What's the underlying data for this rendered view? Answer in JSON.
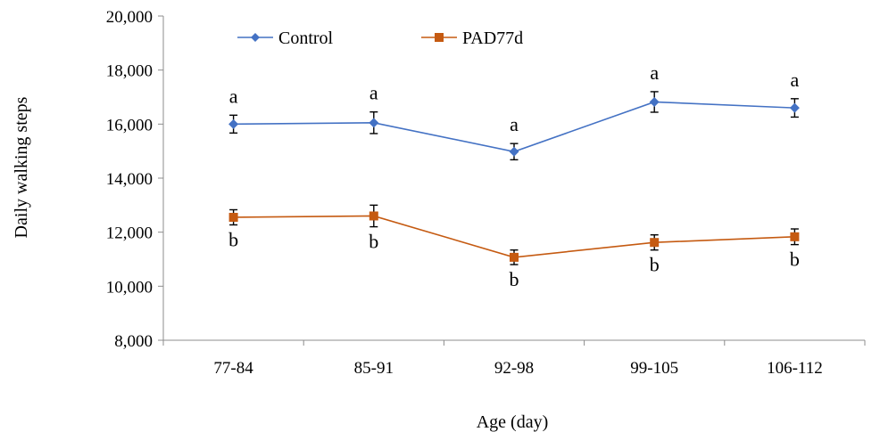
{
  "chart_data": {
    "type": "line",
    "xlabel": "Age (day)",
    "ylabel": "Daily walking steps",
    "ylim": [
      8000,
      20000
    ],
    "yticks": [
      8000,
      10000,
      12000,
      14000,
      16000,
      18000,
      20000
    ],
    "ytick_labels": [
      "8,000",
      "10,000",
      "12,000",
      "14,000",
      "16,000",
      "18,000",
      "20,000"
    ],
    "categories": [
      "77-84",
      "85-91",
      "92-98",
      "99-105",
      "106-112"
    ],
    "grid": false,
    "legend_position": "top",
    "series": [
      {
        "name": "Control",
        "color": "#4472C4",
        "marker": "diamond",
        "values": [
          16000,
          16050,
          14980,
          16820,
          16600
        ],
        "errors": [
          330,
          400,
          300,
          380,
          340
        ],
        "labels": [
          "a",
          "a",
          "a",
          "a",
          "a"
        ]
      },
      {
        "name": "PAD77d",
        "color": "#C55A11",
        "marker": "square",
        "values": [
          12550,
          12600,
          11070,
          11620,
          11830
        ],
        "errors": [
          280,
          400,
          270,
          280,
          290
        ],
        "labels": [
          "b",
          "b",
          "b",
          "b",
          "b"
        ]
      }
    ]
  }
}
